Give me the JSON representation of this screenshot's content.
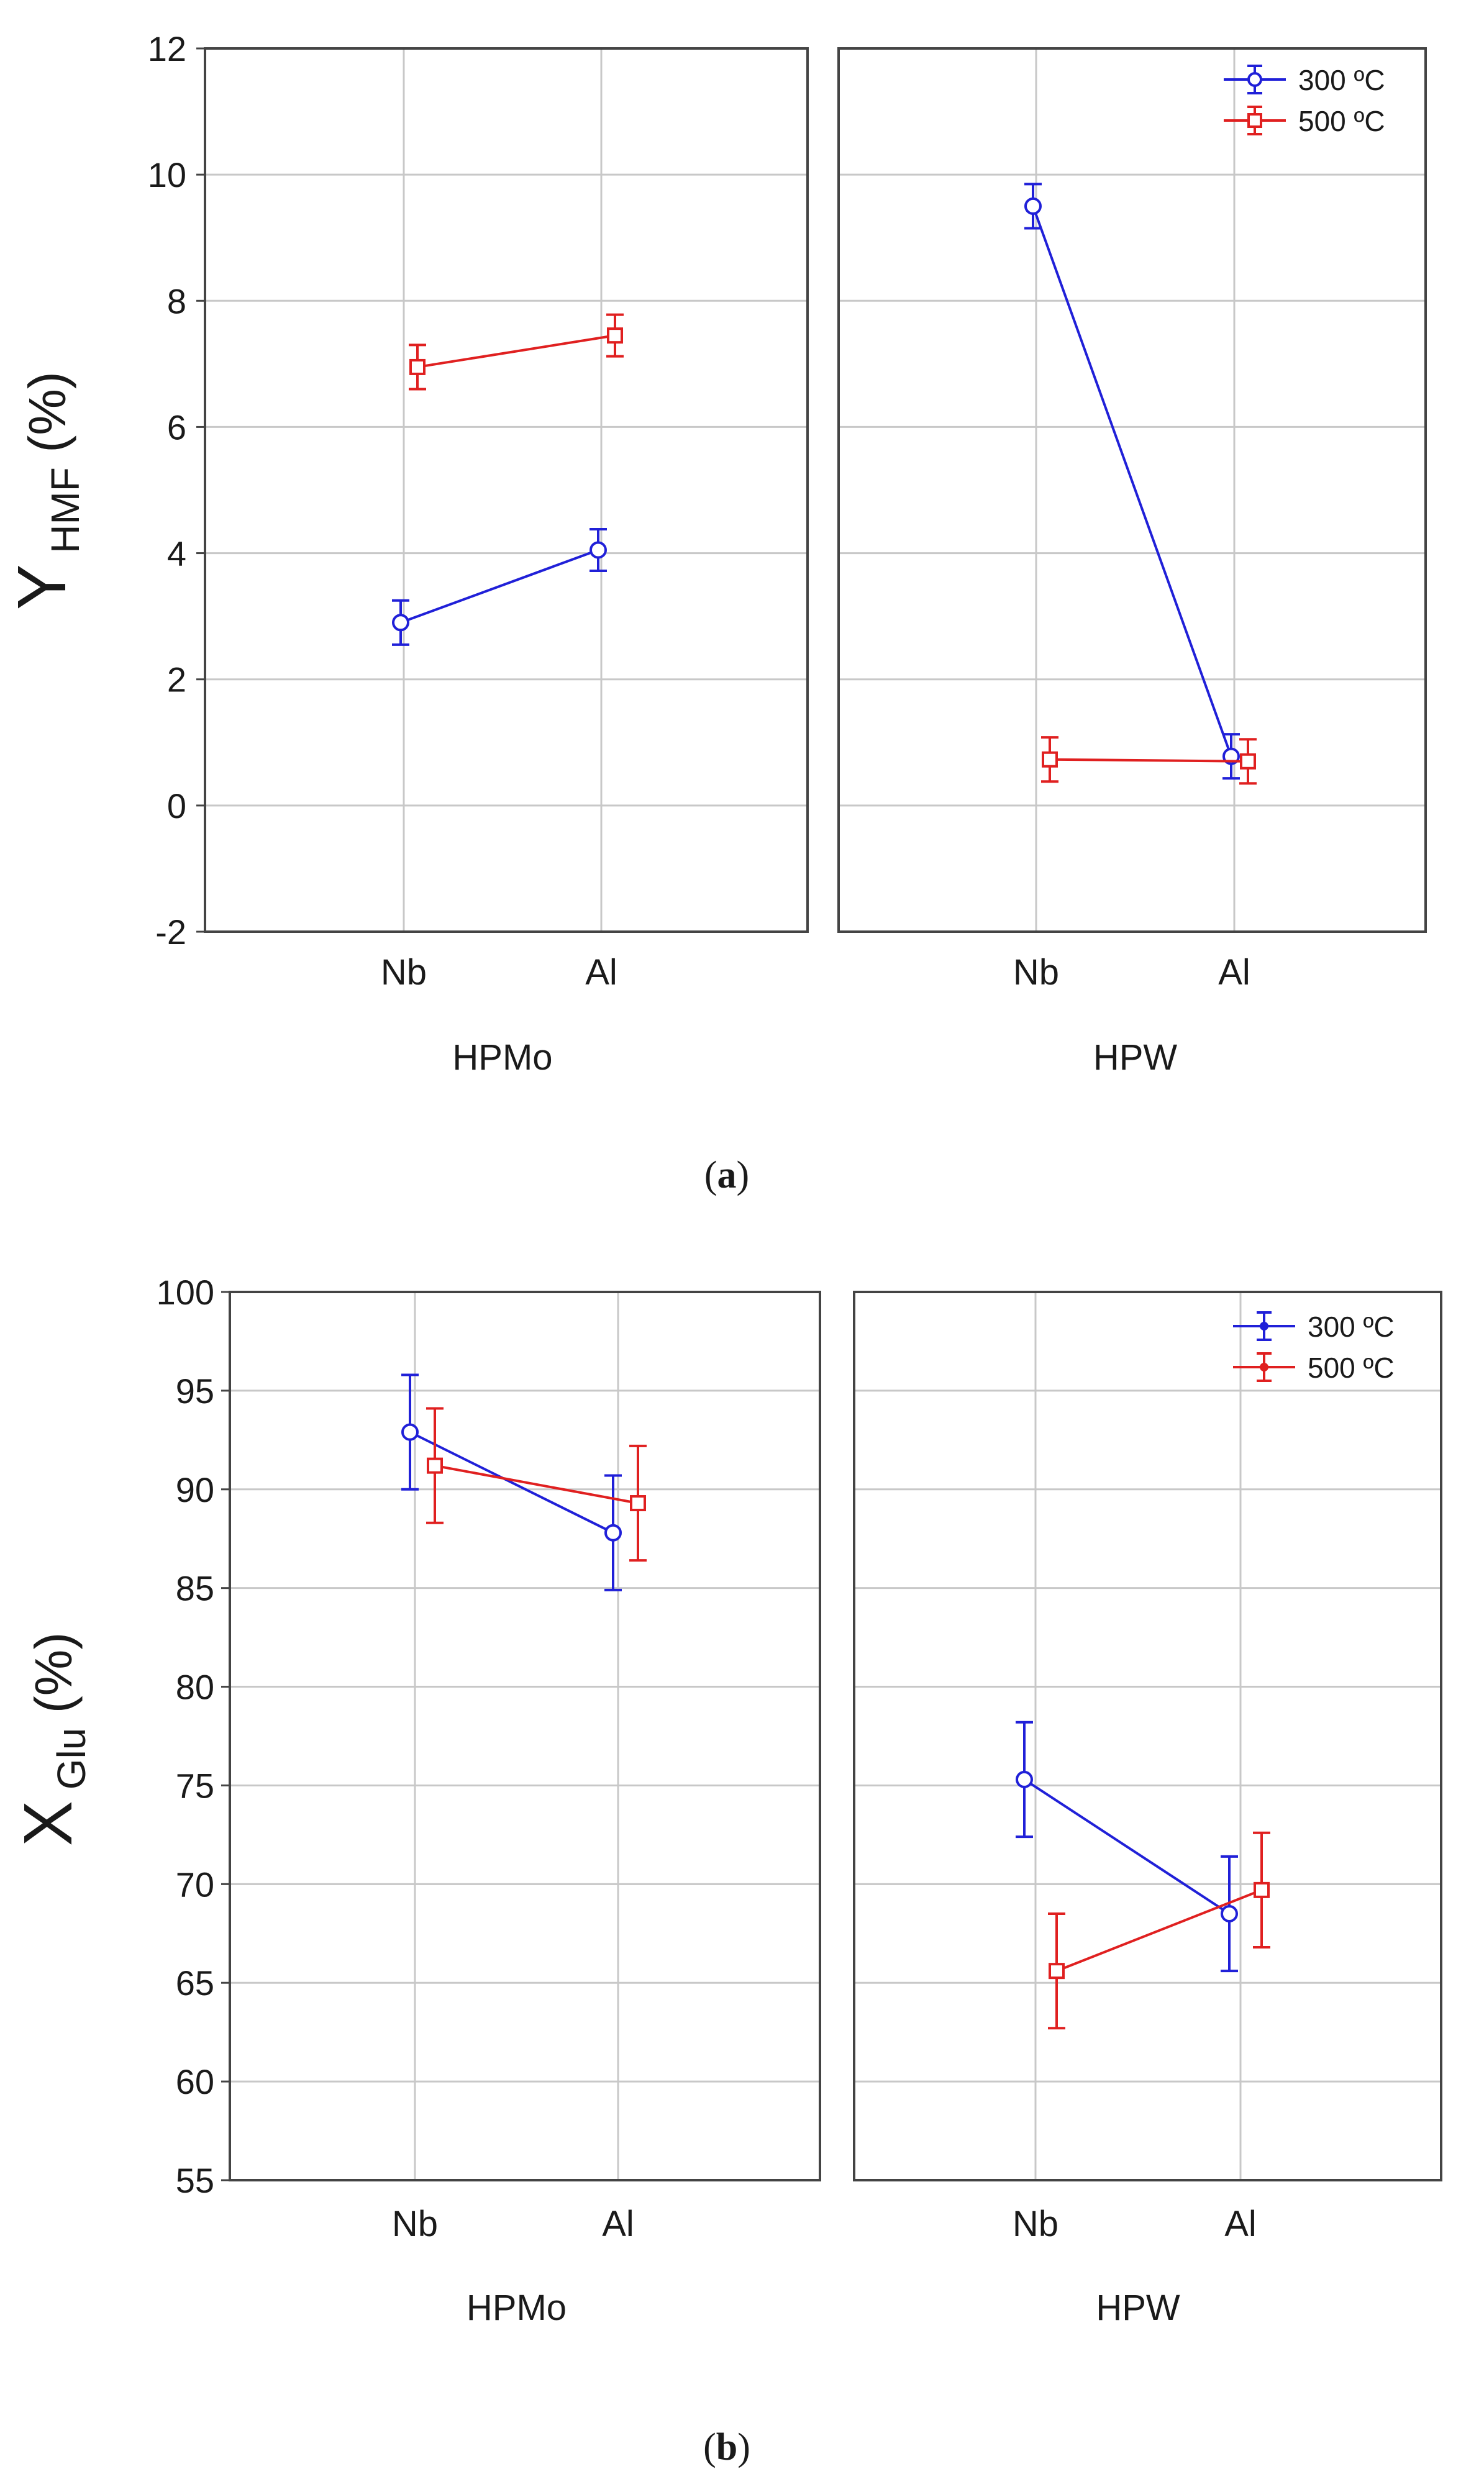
{
  "colors": {
    "series_300": "#2020d8",
    "series_500": "#e02020",
    "grid": "#c8c8c8",
    "frame": "#444444",
    "text": "#1a1a1a"
  },
  "legend": {
    "series_300": "300 ºC",
    "series_500": "500 ºC"
  },
  "chart_data": [
    {
      "type": "line",
      "panel": "a",
      "caption_letter": "a",
      "ylabel_main": "Y",
      "ylabel_sub": "HMF",
      "ylabel_unit": "(%)",
      "ylim": [
        -2,
        12
      ],
      "yticks": [
        -2,
        0,
        2,
        4,
        6,
        8,
        10,
        12
      ],
      "ytick_labels": [
        "-2",
        "0",
        "2",
        "4",
        "6",
        "8",
        "10",
        "12"
      ],
      "grid": true,
      "legend_position": "top-right",
      "categories": [
        "Nb",
        "Al"
      ],
      "groups": [
        {
          "name": "HPMo",
          "series": [
            {
              "name": "300 ºC",
              "marker": "circle",
              "values": [
                2.9,
                4.05
              ],
              "errors": [
                0.35,
                0.33
              ]
            },
            {
              "name": "500 ºC",
              "marker": "square",
              "values": [
                6.95,
                7.45
              ],
              "errors": [
                0.35,
                0.33
              ]
            }
          ]
        },
        {
          "name": "HPW",
          "series": [
            {
              "name": "300 ºC",
              "marker": "circle",
              "values": [
                9.5,
                0.78
              ],
              "errors": [
                0.35,
                0.35
              ]
            },
            {
              "name": "500 ºC",
              "marker": "square",
              "values": [
                0.73,
                0.7
              ],
              "errors": [
                0.35,
                0.35
              ]
            }
          ]
        }
      ]
    },
    {
      "type": "line",
      "panel": "b",
      "caption_letter": "b",
      "ylabel_main": "X",
      "ylabel_sub": "Glu",
      "ylabel_unit": "(%)",
      "ylim": [
        55,
        100
      ],
      "yticks": [
        55,
        60,
        65,
        70,
        75,
        80,
        85,
        90,
        95,
        100
      ],
      "ytick_labels": [
        "55",
        "60",
        "65",
        "70",
        "75",
        "80",
        "85",
        "90",
        "95",
        "100"
      ],
      "grid": true,
      "legend_position": "top-right",
      "categories": [
        "Nb",
        "Al"
      ],
      "groups": [
        {
          "name": "HPMo",
          "series": [
            {
              "name": "300 ºC",
              "marker": "circle",
              "values": [
                92.9,
                87.8
              ],
              "errors": [
                2.9,
                2.9
              ]
            },
            {
              "name": "500 ºC",
              "marker": "square",
              "values": [
                91.2,
                89.3
              ],
              "errors": [
                2.9,
                2.9
              ]
            }
          ]
        },
        {
          "name": "HPW",
          "series": [
            {
              "name": "300 ºC",
              "marker": "circle",
              "values": [
                75.3,
                68.5
              ],
              "errors": [
                2.9,
                2.9
              ]
            },
            {
              "name": "500 ºC",
              "marker": "square",
              "values": [
                65.6,
                69.7
              ],
              "errors": [
                2.9,
                2.9
              ]
            }
          ]
        }
      ]
    }
  ]
}
